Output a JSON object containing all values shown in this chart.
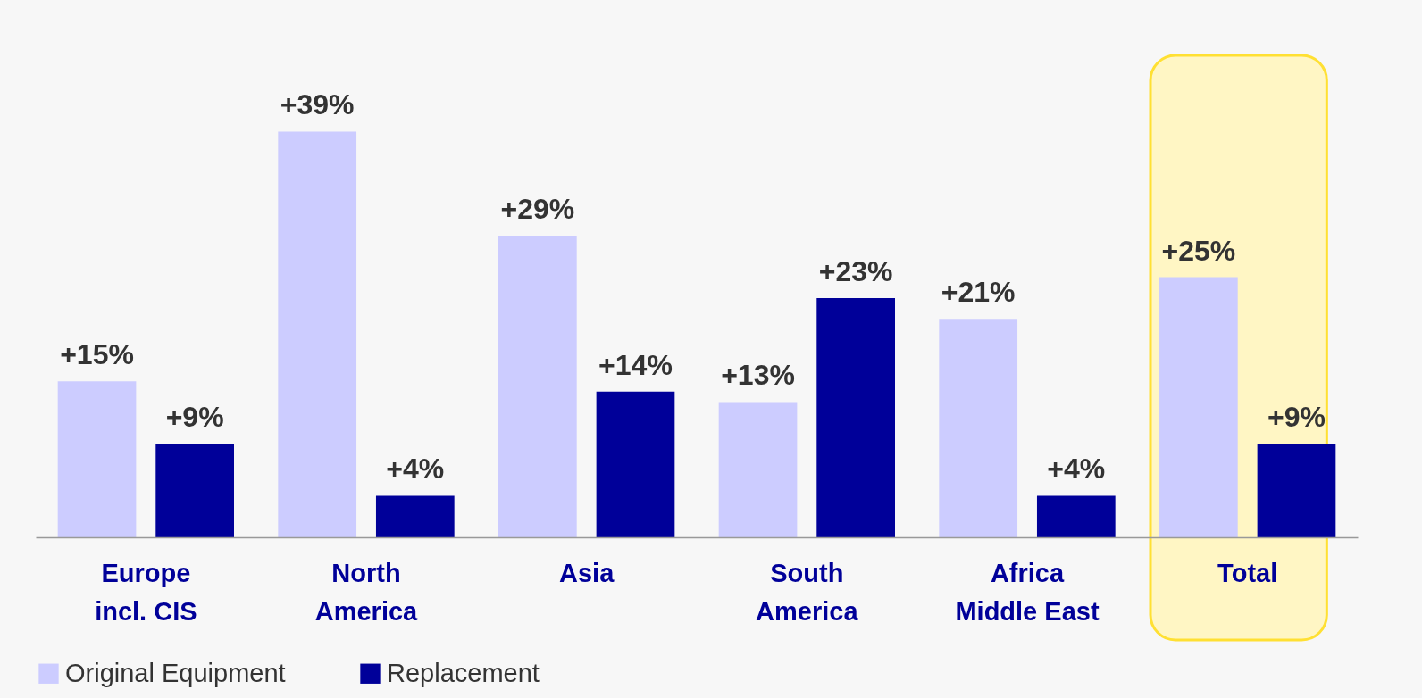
{
  "chart_data": {
    "type": "bar",
    "categories": [
      "Europe\nincl. CIS",
      "North\nAmerica",
      "Asia",
      "South\nAmerica",
      "Africa\nMiddle East",
      "Total"
    ],
    "series": [
      {
        "name": "Original Equipment",
        "color": "#ccccff",
        "values": [
          15,
          39,
          29,
          13,
          21,
          25
        ],
        "value_labels": [
          "+15%",
          "+39%",
          "+29%",
          "+13%",
          "+21%",
          "+25%"
        ]
      },
      {
        "name": "Replacement",
        "color": "#000099",
        "values": [
          9,
          4,
          14,
          23,
          4,
          9
        ],
        "value_labels": [
          "+9%",
          "+4%",
          "+14%",
          "+23%",
          "+4%",
          "+9%"
        ]
      }
    ],
    "bands": [
      {
        "axis": "x",
        "from": "Total",
        "to": "Total",
        "color": "#fff6c4"
      }
    ],
    "legend": "bottom"
  }
}
